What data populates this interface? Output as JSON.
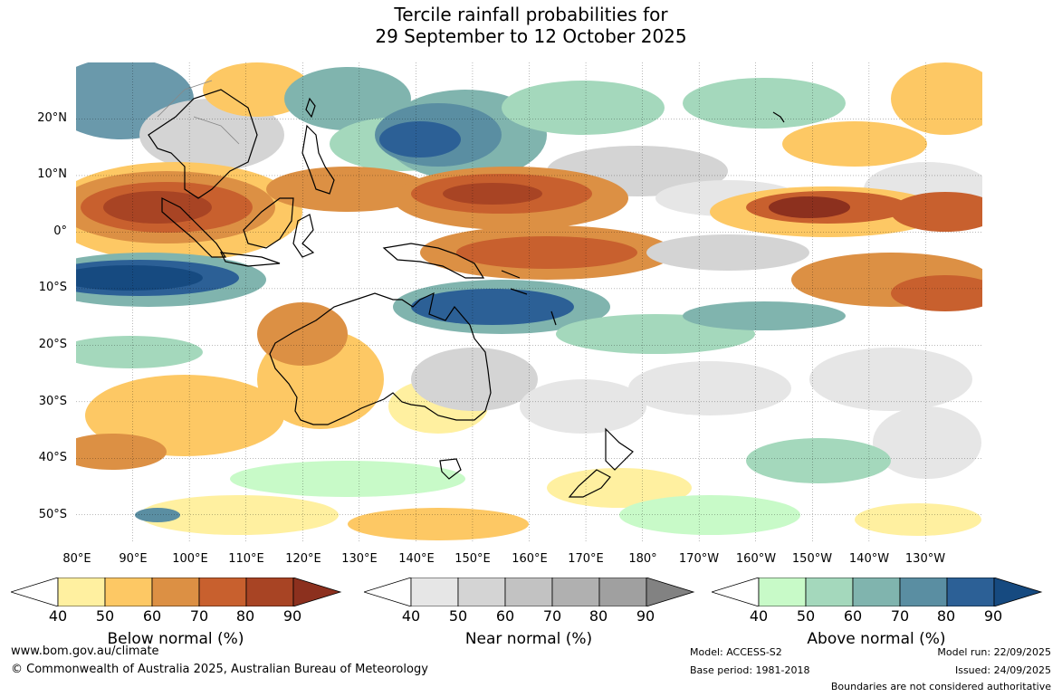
{
  "title": {
    "line1": "Tercile rainfall probabilities for",
    "line2": "29 September to 12 October 2025"
  },
  "map": {
    "lat_labels": [
      "20°N",
      "10°N",
      "0°",
      "10°S",
      "20°S",
      "30°S",
      "40°S",
      "50°S"
    ],
    "lon_labels": [
      "80°E",
      "90°E",
      "100°E",
      "110°E",
      "120°E",
      "130°E",
      "140°E",
      "150°E",
      "160°E",
      "170°E",
      "180°",
      "170°W",
      "160°W",
      "150°W",
      "140°W",
      "130°W"
    ],
    "lat_range": [
      -55,
      30
    ],
    "lon_range": [
      80,
      240
    ],
    "gridlines": true
  },
  "colorbars": [
    {
      "title": "Below normal (%)",
      "ticks": [
        "40",
        "50",
        "60",
        "70",
        "80",
        "90"
      ],
      "colors": [
        "#fff0a0",
        "#fdc864",
        "#dc9044",
        "#c8602e",
        "#a84424",
        "#8c301e"
      ]
    },
    {
      "title": "Near normal (%)",
      "ticks": [
        "40",
        "50",
        "60",
        "70",
        "80",
        "90"
      ],
      "colors": [
        "#e6e6e6",
        "#d4d4d4",
        "#c2c2c2",
        "#b0b0b0",
        "#a0a0a0",
        "#828282"
      ]
    },
    {
      "title": "Above normal (%)",
      "ticks": [
        "40",
        "50",
        "60",
        "70",
        "80",
        "90"
      ],
      "colors": [
        "#c8fac8",
        "#a4d8bc",
        "#80b4ae",
        "#5a8ea2",
        "#2c6096",
        "#164a80"
      ]
    }
  ],
  "footer": {
    "website": "www.bom.gov.au/climate",
    "copyright": "© Commonwealth of Australia 2025, Australian Bureau of Meteorology",
    "model": "Model: ACCESS-S2",
    "base_period": "Base period: 1981-2018",
    "model_run": "Model run: 22/09/2025",
    "issued": "Issued: 24/09/2025",
    "disclaimer": "Boundaries are not considered authoritative"
  }
}
